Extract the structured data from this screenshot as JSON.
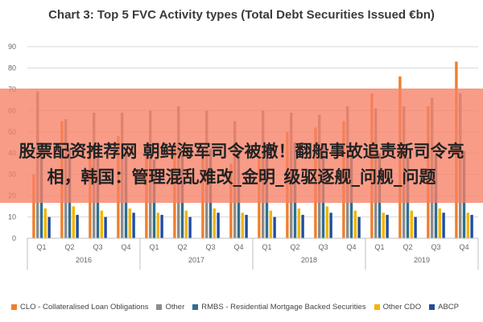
{
  "overlay": {
    "text": "股票配资推荐网 朝鲜海军司令被撤！翻船事故追责新司令亮相，韩国：管理混乱难改_金明_级驱逐舰_问舰_问题"
  },
  "colors": {
    "CLO": "#f07e2b",
    "Other": "#8c8c8c",
    "RMBS": "#2f6f8f",
    "OtherCDO": "#f4b400",
    "ABCP": "#1f4e9c",
    "grid": "#d9d9d9",
    "axis_text": "#666666",
    "overlay": "#f68067"
  },
  "chart_data": {
    "type": "bar",
    "title": "Chart 3: Top 5 FVC Activity types (Total Debt Securities Issued €bn)",
    "ylim": [
      0,
      90
    ],
    "yticks": [
      0,
      10,
      20,
      30,
      40,
      50,
      60,
      70,
      80,
      90
    ],
    "grid": true,
    "legend_position": "bottom",
    "categories": [
      "Q1",
      "Q2",
      "Q3",
      "Q4",
      "Q1",
      "Q2",
      "Q3",
      "Q4",
      "Q1",
      "Q2",
      "Q3",
      "Q4",
      "Q1",
      "Q2",
      "Q3",
      "Q4"
    ],
    "years": [
      {
        "label": "2016",
        "span": 4
      },
      {
        "label": "2017",
        "span": 4
      },
      {
        "label": "2018",
        "span": 4
      },
      {
        "label": "2019",
        "span": 4
      }
    ],
    "series": [
      {
        "name": "CLO - Collateralised Loan Obligations",
        "color_key": "CLO",
        "values": [
          30,
          55,
          40,
          48,
          40,
          45,
          40,
          35,
          40,
          50,
          52,
          55,
          68,
          76,
          62,
          83
        ]
      },
      {
        "name": "Other",
        "color_key": "Other",
        "values": [
          69,
          56,
          59,
          59,
          60,
          62,
          60,
          55,
          60,
          59,
          58,
          62,
          61,
          62,
          66,
          68
        ]
      },
      {
        "name": "RMBS - Residential Mortgage Backed Securities",
        "color_key": "RMBS",
        "values": [
          45,
          42,
          38,
          40,
          37,
          39,
          42,
          40,
          43,
          45,
          44,
          42,
          40,
          38,
          39,
          41
        ]
      },
      {
        "name": "Other CDO",
        "color_key": "OtherCDO",
        "values": [
          14,
          15,
          13,
          14,
          12,
          13,
          14,
          12,
          13,
          14,
          15,
          13,
          12,
          13,
          14,
          12
        ]
      },
      {
        "name": "ABCP",
        "color_key": "ABCP",
        "values": [
          10,
          11,
          10,
          12,
          11,
          10,
          12,
          11,
          10,
          11,
          12,
          10,
          11,
          10,
          12,
          11
        ]
      }
    ]
  }
}
